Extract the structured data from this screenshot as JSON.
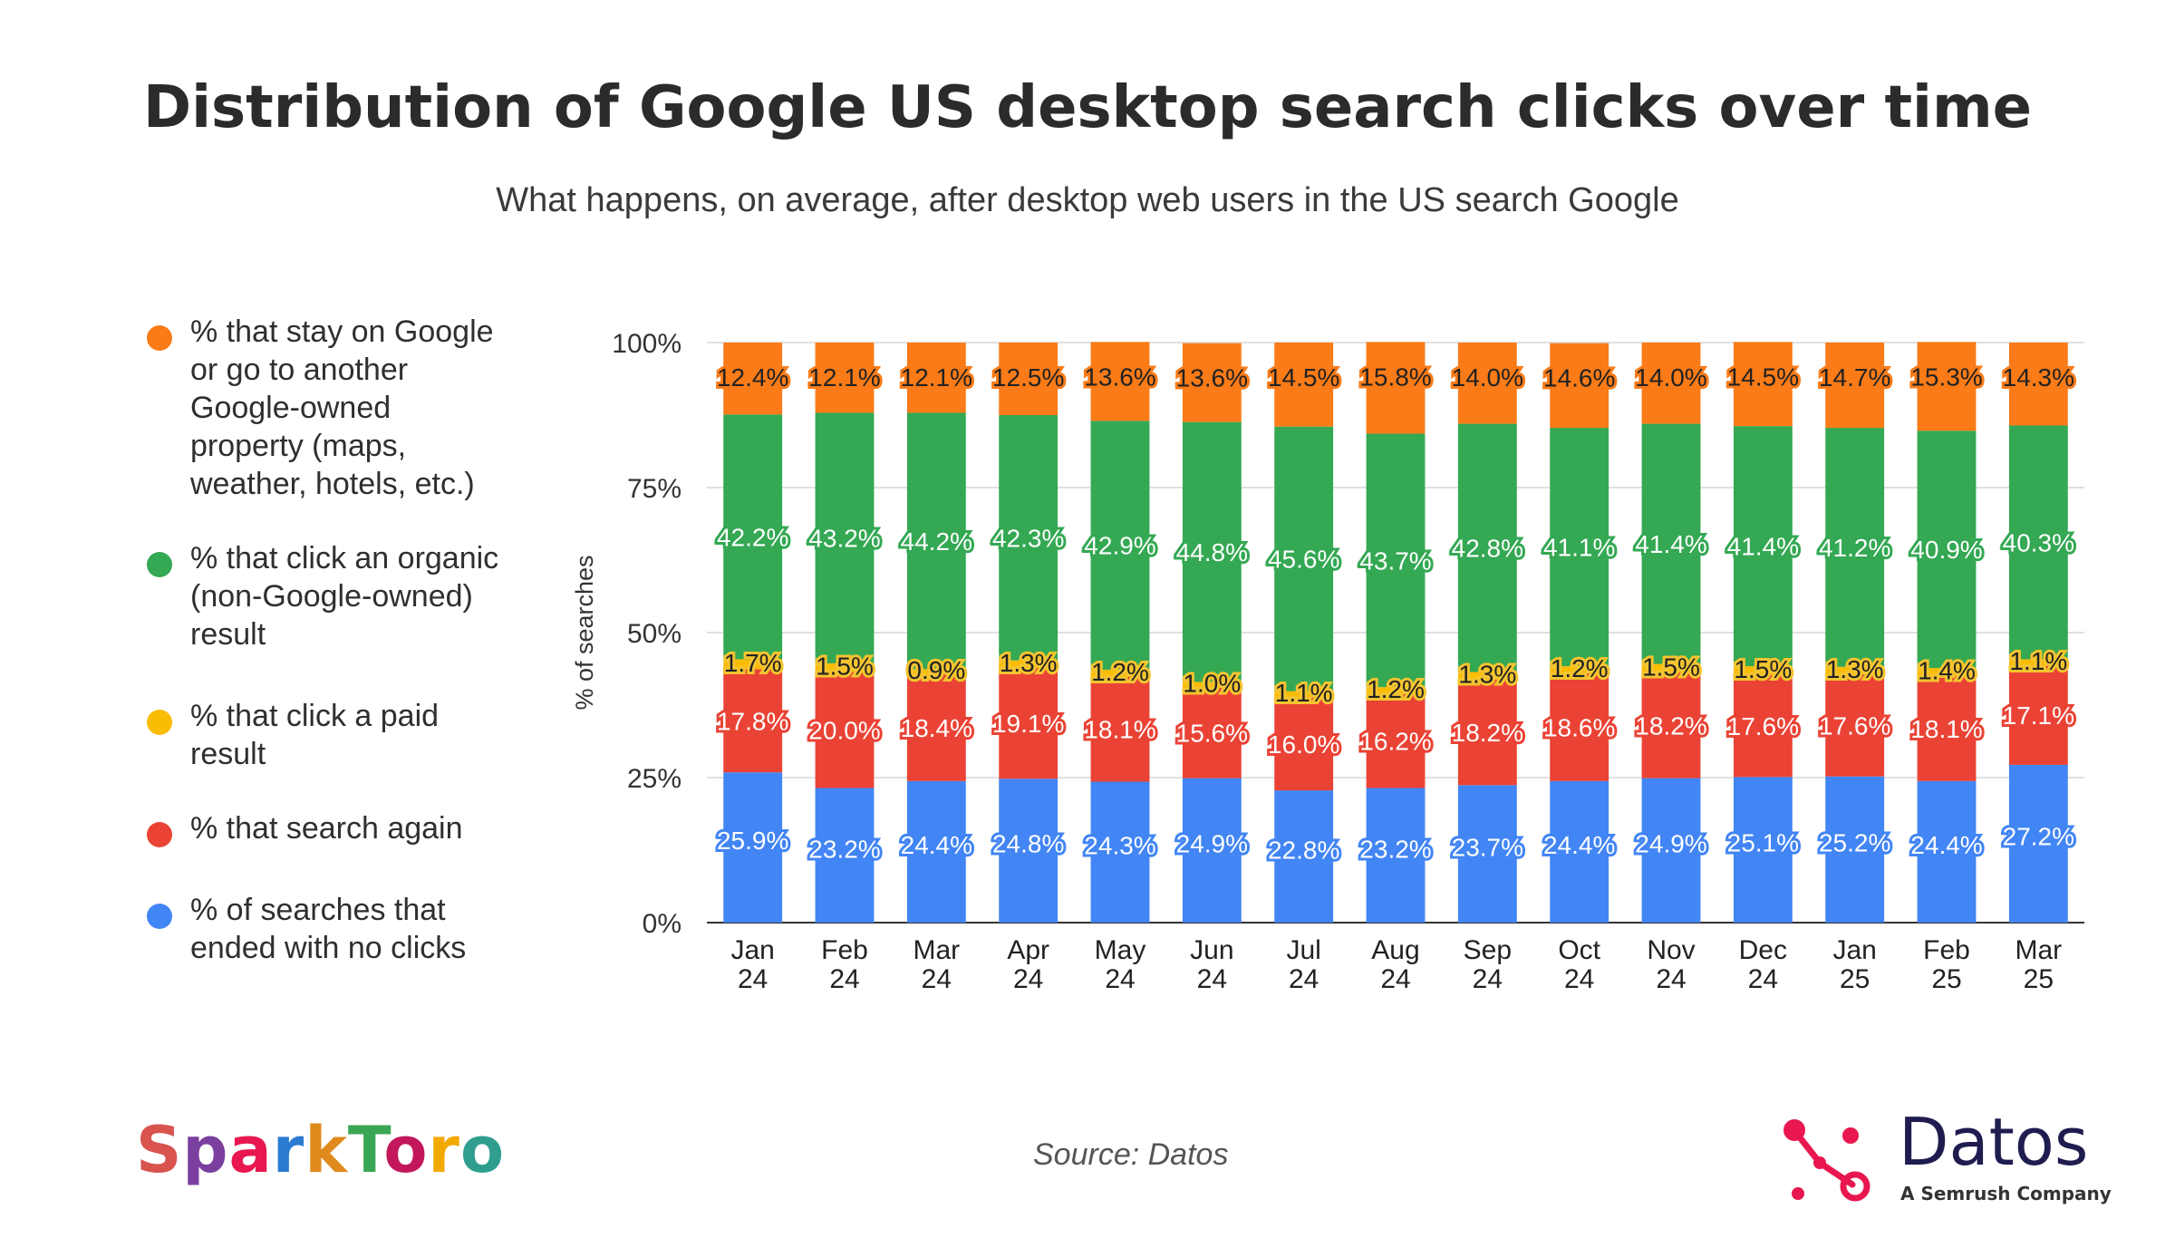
{
  "title": "Distribution of Google US desktop search clicks over time",
  "subtitle": "What happens, on average, after desktop web users in the US search Google",
  "source": "Source: Datos",
  "logos": {
    "sparktoro": "SparkToro",
    "datos": "Datos",
    "datos_tagline": "A Semrush Company"
  },
  "colors": {
    "noclick": "#4285f4",
    "search_again": "#ea4335",
    "paid": "#fbbc04",
    "organic": "#34a853",
    "google": "#fa7b17"
  },
  "chart_data": {
    "type": "bar",
    "stacked": true,
    "ylabel": "% of searches",
    "ylim": [
      0,
      100
    ],
    "yticks": [
      "0%",
      "25%",
      "50%",
      "75%",
      "100%"
    ],
    "grid": true,
    "legend_position": "left",
    "categories": [
      [
        "Jan",
        "24"
      ],
      [
        "Feb",
        "24"
      ],
      [
        "Mar",
        "24"
      ],
      [
        "Apr",
        "24"
      ],
      [
        "May",
        "24"
      ],
      [
        "Jun",
        "24"
      ],
      [
        "Jul",
        "24"
      ],
      [
        "Aug",
        "24"
      ],
      [
        "Sep",
        "24"
      ],
      [
        "Oct",
        "24"
      ],
      [
        "Nov",
        "24"
      ],
      [
        "Dec",
        "24"
      ],
      [
        "Jan",
        "25"
      ],
      [
        "Feb",
        "25"
      ],
      [
        "Mar",
        "25"
      ]
    ],
    "series": [
      {
        "key": "noclick",
        "name": "% of searches that ended with no clicks",
        "values": [
          25.9,
          23.2,
          24.4,
          24.8,
          24.3,
          24.9,
          22.8,
          23.2,
          23.7,
          24.4,
          24.9,
          25.1,
          25.2,
          24.4,
          27.2
        ]
      },
      {
        "key": "search_again",
        "name": "% that search again",
        "values": [
          17.8,
          20.0,
          18.4,
          19.1,
          18.1,
          15.6,
          16.0,
          16.2,
          18.2,
          18.6,
          18.2,
          17.6,
          17.6,
          18.1,
          17.1
        ]
      },
      {
        "key": "paid",
        "name": "% that click a paid result",
        "values": [
          1.7,
          1.5,
          0.9,
          1.3,
          1.2,
          1.0,
          1.1,
          1.2,
          1.3,
          1.2,
          1.5,
          1.5,
          1.3,
          1.4,
          1.1
        ]
      },
      {
        "key": "organic",
        "name": "% that click an organic (non-Google-owned) result",
        "values": [
          42.2,
          43.2,
          44.2,
          42.3,
          42.9,
          44.8,
          45.6,
          43.7,
          42.8,
          41.1,
          41.4,
          41.4,
          41.2,
          40.9,
          40.3
        ]
      },
      {
        "key": "google",
        "name": "% that stay on Google or go to another Google-owned property (maps, weather, hotels, etc.)",
        "values": [
          12.4,
          12.1,
          12.1,
          12.5,
          13.6,
          13.6,
          14.5,
          15.8,
          14.0,
          14.6,
          14.0,
          14.5,
          14.7,
          15.3,
          14.3
        ]
      }
    ]
  },
  "legend": [
    {
      "key": "google",
      "lines": [
        "% that stay on Google",
        "or go to another",
        "Google-owned",
        "property (maps,",
        "weather, hotels, etc.)"
      ]
    },
    {
      "key": "organic",
      "lines": [
        "% that click an organic",
        "(non-Google-owned)",
        "result"
      ]
    },
    {
      "key": "paid",
      "lines": [
        "% that click a paid",
        "result"
      ]
    },
    {
      "key": "search_again",
      "lines": [
        "% that search again"
      ]
    },
    {
      "key": "noclick",
      "lines": [
        "% of searches that",
        "ended with no clicks"
      ]
    }
  ]
}
